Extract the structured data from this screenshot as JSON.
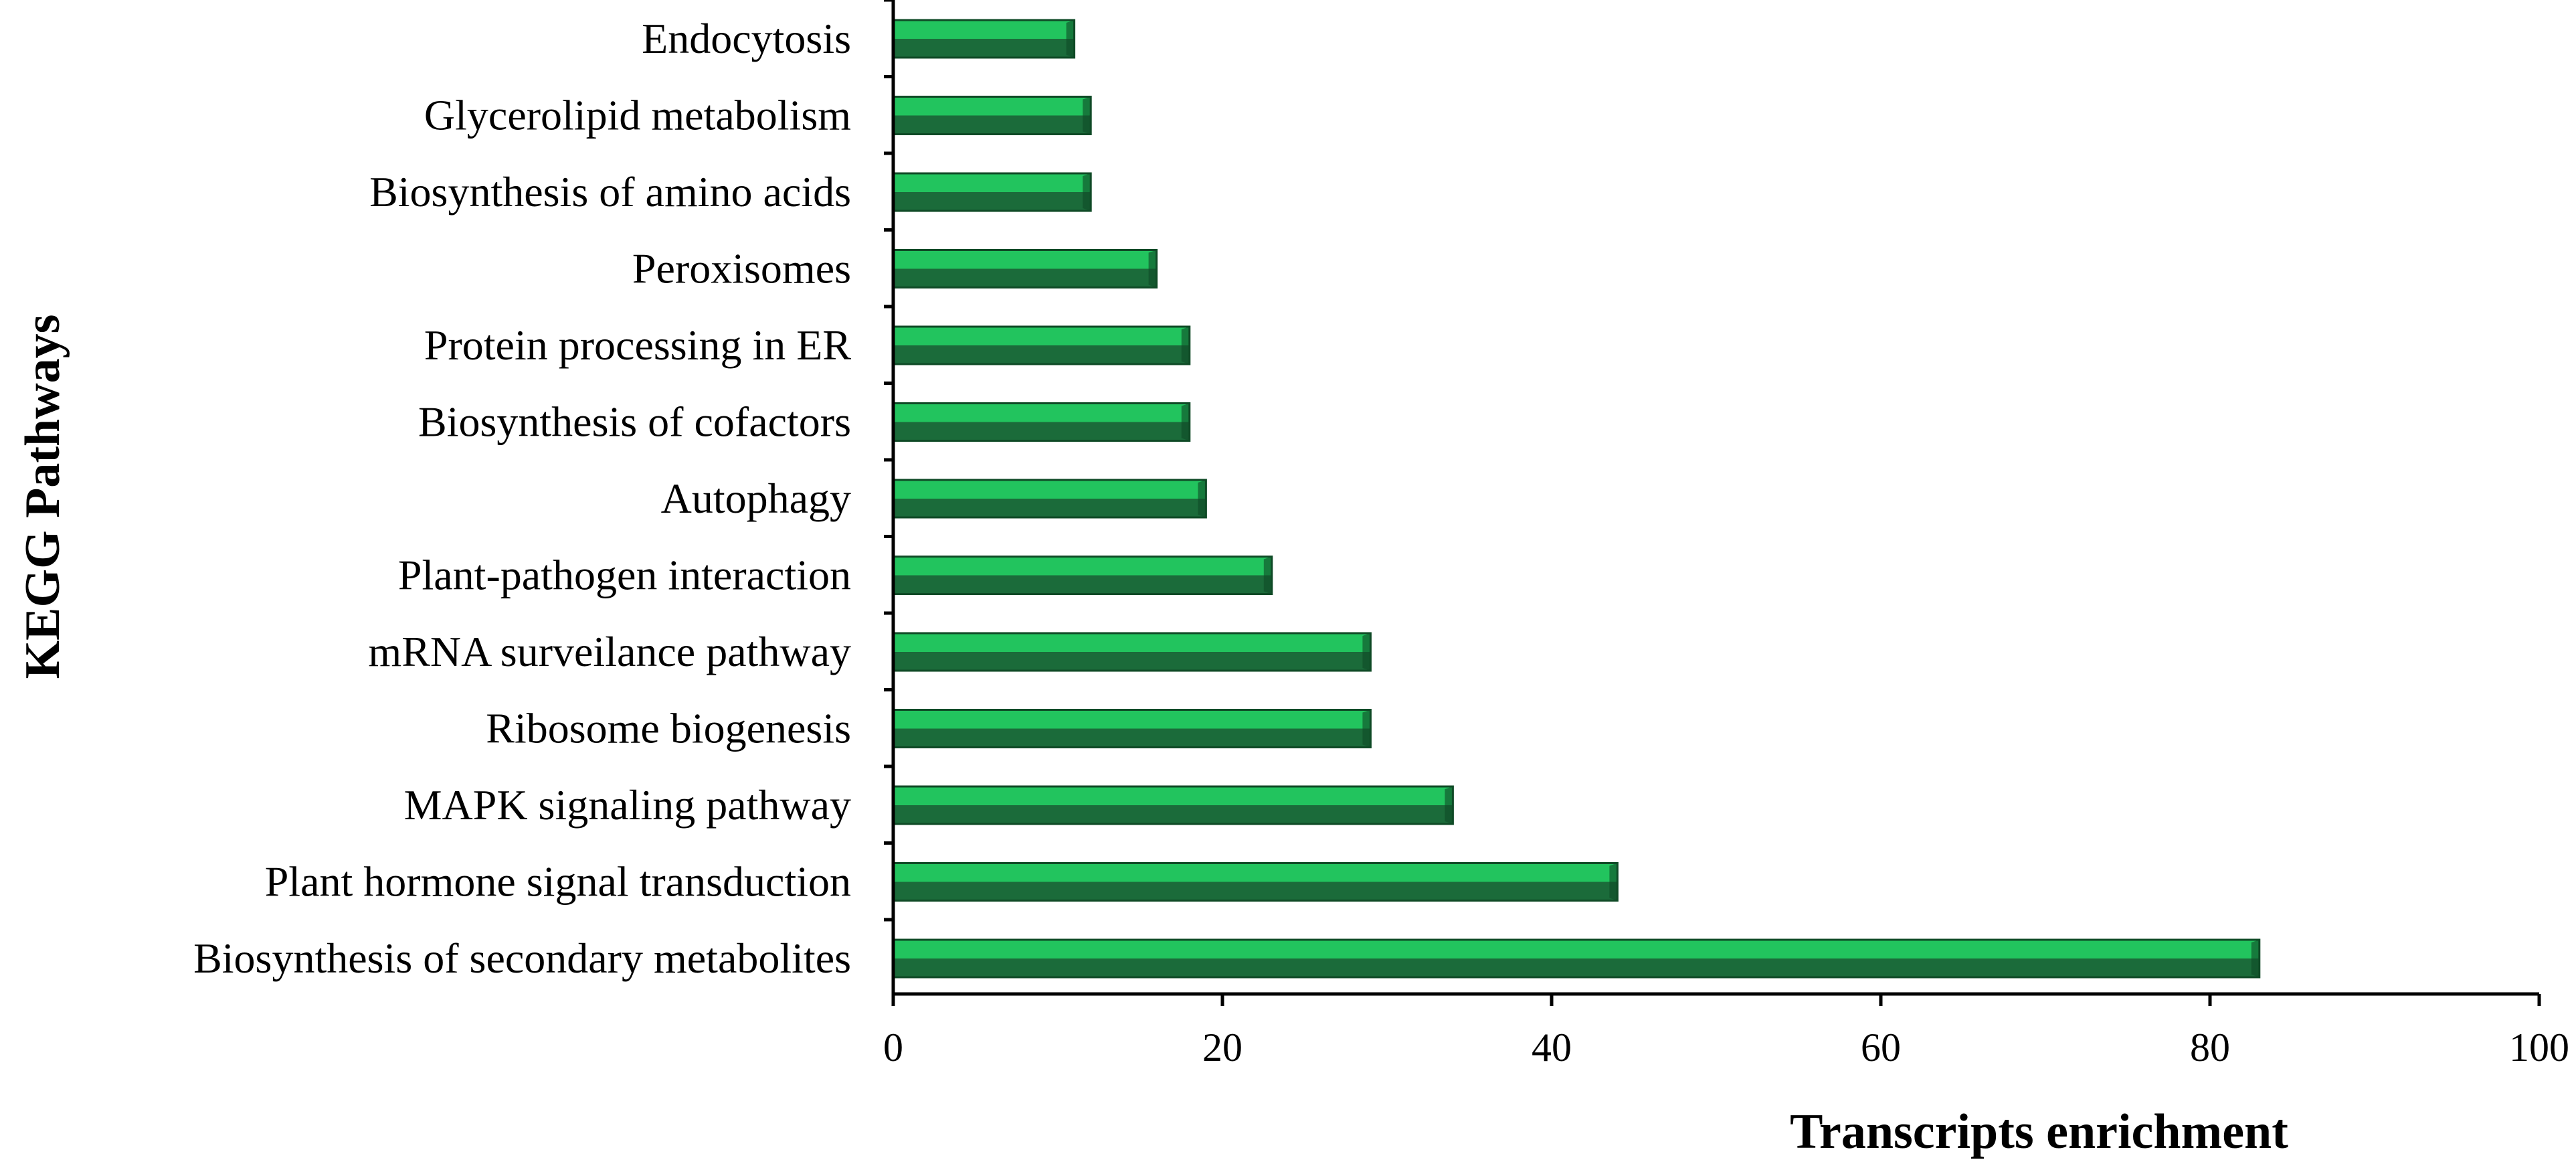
{
  "chart_data": {
    "type": "bar",
    "orientation": "horizontal",
    "categories": [
      "Endocytosis",
      "Glycerolipid metabolism",
      "Biosynthesis of amino acids",
      "Peroxisomes",
      "Protein processing in ER",
      "Biosynthesis of cofactors",
      "Autophagy",
      "Plant-pathogen interaction",
      "mRNA surveilance pathway",
      "Ribosome biogenesis",
      "MAPK signaling pathway",
      "Plant hormone signal transduction",
      "Biosynthesis of secondary metabolites"
    ],
    "values": [
      11,
      12,
      12,
      16,
      18,
      18,
      19,
      23,
      29,
      29,
      34,
      44,
      83
    ],
    "xlabel": "Transcripts enrichment",
    "ylabel": "KEGG Pathways",
    "xlim": [
      0,
      100
    ],
    "xticks": [
      "0",
      "20",
      "40",
      "60",
      "80",
      "100"
    ],
    "grid": false,
    "legend": "none",
    "colors": {
      "bar_top": "#22c45e",
      "bar_bottom": "#1b6b3a",
      "bar_edge": "#0f4a26",
      "axis": "#000000"
    }
  }
}
